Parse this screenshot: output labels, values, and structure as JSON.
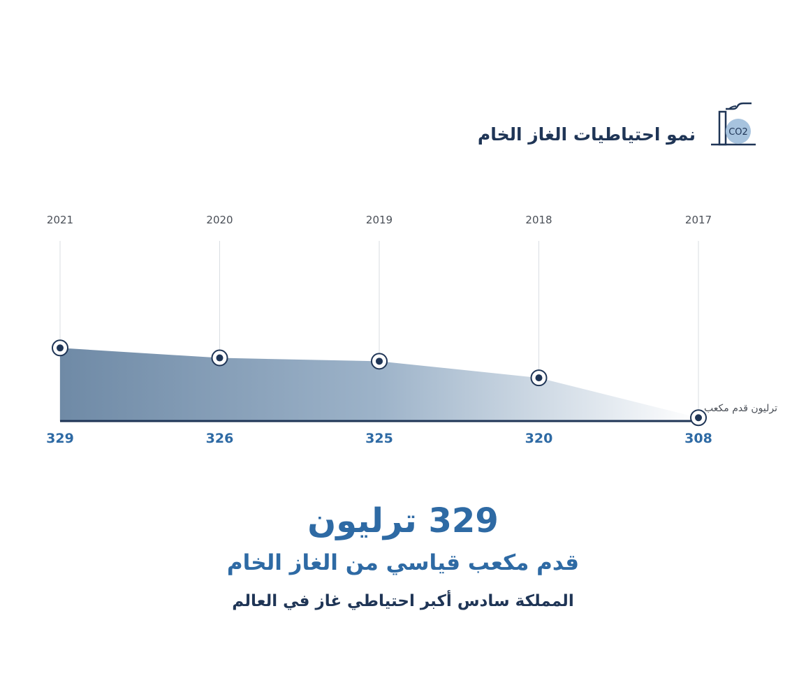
{
  "header": {
    "title": "نمو احتياطيات الغاز الخام",
    "icon_text": "CO2"
  },
  "chart_data": {
    "type": "area",
    "title": "نمو احتياطيات الغاز الخام",
    "x": [
      "2021",
      "2020",
      "2019",
      "2018",
      "2017"
    ],
    "values": [
      329,
      326,
      325,
      320,
      308
    ],
    "unit": "ترليون قدم مكعب",
    "ylim": [
      307,
      334
    ],
    "grid": "vertical",
    "colors": {
      "fill_dark": "#6f8aa6",
      "fill_light": "#ffffff",
      "baseline": "#1f3556",
      "marker": "#1f3556"
    }
  },
  "highlight": {
    "headline": "329 ترليون",
    "subheadline": "قدم مكعب قياسي من الغاز الخام",
    "footnote": "المملكة سادس أكبر احتياطي غاز في العالم"
  }
}
